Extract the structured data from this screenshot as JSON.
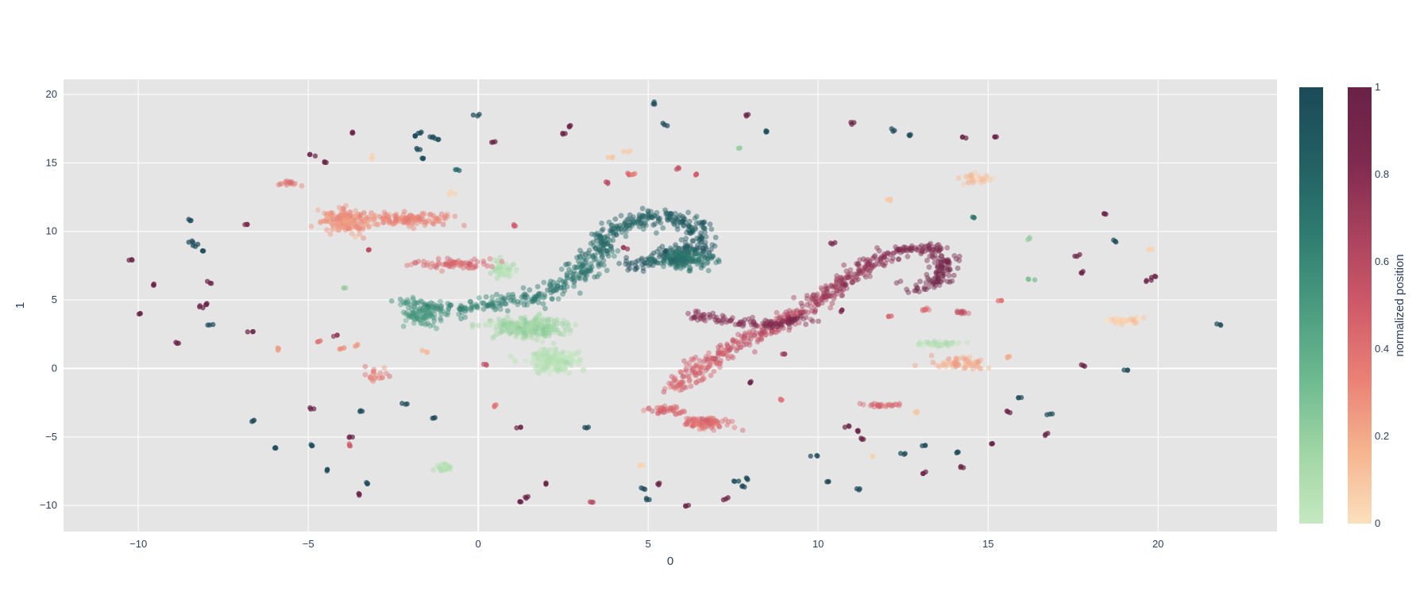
{
  "chart_data": {
    "type": "scatter",
    "title": "",
    "xlabel": "0",
    "ylabel": "1",
    "xlim": [
      -12.2,
      23.5
    ],
    "ylim": [
      -11.9,
      21.1
    ],
    "x_ticks": [
      -10,
      -5,
      0,
      5,
      10,
      15,
      20
    ],
    "y_ticks": [
      -10,
      -5,
      0,
      5,
      10,
      15,
      20
    ],
    "x_tick_labels": [
      "−10",
      "−5",
      "0",
      "5",
      "10",
      "15",
      "20"
    ],
    "y_tick_labels": [
      "−10",
      "−5",
      "0",
      "5",
      "10",
      "15",
      "20"
    ],
    "grid": true,
    "plot_background": "#e5e5e5",
    "colorbars": [
      {
        "name": "green colorscale",
        "title": "",
        "colors": [
          "#c6e8c0",
          "#9fd5a4",
          "#6cb98f",
          "#4a9a80",
          "#2e7b70",
          "#225f63",
          "#1b4a58"
        ],
        "tick_labels": []
      },
      {
        "name": "red colorscale",
        "title": "normalized position",
        "colors": [
          "#fbe0bd",
          "#f5b48e",
          "#ea8074",
          "#cf5a69",
          "#a8415e",
          "#7d2a4e",
          "#6a2146"
        ],
        "range": [
          0,
          1
        ],
        "ticks": [
          0,
          0.2,
          0.4,
          0.6,
          0.8,
          1
        ],
        "tick_labels": [
          "0",
          "0.2",
          "0.4",
          "0.6",
          "0.8",
          "1"
        ]
      }
    ],
    "series": [
      {
        "colorscale": "green",
        "clusters": [
          {
            "x": 1.5,
            "y": 3.0,
            "sx": 0.9,
            "sy": 0.6,
            "n": 260,
            "c": 0.15
          },
          {
            "x": 2.2,
            "y": 0.6,
            "sx": 0.6,
            "sy": 0.7,
            "n": 200,
            "c": 0.05
          },
          {
            "x": 0.7,
            "y": 7.2,
            "sx": 0.3,
            "sy": 0.5,
            "n": 50,
            "c": 0.08
          },
          {
            "x": -1.0,
            "y": -7.2,
            "sx": 0.2,
            "sy": 0.3,
            "n": 40,
            "c": 0.05
          },
          {
            "x": 13.6,
            "y": 1.8,
            "sx": 0.6,
            "sy": 0.2,
            "n": 40,
            "c": 0.06
          }
        ],
        "paths": [
          {
            "pts": [
              [
                -2.2,
                4.8
              ],
              [
                -0.8,
                4.2
              ],
              [
                0.8,
                4.8
              ],
              [
                2.2,
                5.5
              ],
              [
                3.1,
                7.2
              ],
              [
                4.0,
                10.3
              ],
              [
                5.5,
                11.2
              ],
              [
                6.4,
                10.4
              ],
              [
                6.6,
                9.0
              ],
              [
                5.2,
                8.0
              ],
              [
                4.4,
                7.4
              ]
            ],
            "w": 0.55,
            "n": 650,
            "c0": 0.55,
            "c1": 0.98
          },
          {
            "x": -1.6,
            "y": 3.8,
            "sx": 0.5,
            "sy": 0.5,
            "n": 70,
            "c": 0.5
          },
          {
            "x": 6.1,
            "y": 8.0,
            "sx": 0.7,
            "sy": 0.6,
            "n": 160,
            "c": 0.72
          }
        ],
        "singles": [
          [
            -0.05,
            18.5,
            1
          ],
          [
            5.2,
            19.3,
            1
          ],
          [
            5.5,
            17.8,
            1
          ],
          [
            8.5,
            17.3,
            1
          ],
          [
            12.2,
            17.4,
            1
          ],
          [
            12.7,
            17.0,
            1
          ],
          [
            -1.9,
            17.0,
            1
          ],
          [
            -1.7,
            17.2,
            1
          ],
          [
            -1.4,
            16.9,
            1
          ],
          [
            -1.2,
            16.7,
            1
          ],
          [
            -1.8,
            16.0,
            1
          ],
          [
            -1.6,
            15.3,
            1
          ],
          [
            -0.65,
            14.5,
            0.8
          ],
          [
            -8.5,
            10.8,
            1
          ],
          [
            -8.4,
            9.2,
            1
          ],
          [
            -8.3,
            9.0,
            1
          ],
          [
            -8.1,
            8.6,
            1
          ],
          [
            -7.9,
            3.2,
            1
          ],
          [
            -6.6,
            -3.8,
            1
          ],
          [
            -6.0,
            -5.8,
            1
          ],
          [
            -4.9,
            -5.6,
            1
          ],
          [
            -4.4,
            -7.4,
            1
          ],
          [
            -3.4,
            -3.1,
            1
          ],
          [
            -3.3,
            -8.4,
            1
          ],
          [
            -2.1,
            -2.6,
            1
          ],
          [
            -1.3,
            -3.6,
            1
          ],
          [
            3.2,
            -4.3,
            1
          ],
          [
            4.9,
            -8.7,
            1
          ],
          [
            5.0,
            -9.6,
            1
          ],
          [
            7.6,
            -8.2,
            1
          ],
          [
            7.8,
            -8.6,
            1
          ],
          [
            7.9,
            -8.1,
            1
          ],
          [
            9.9,
            -6.4,
            1
          ],
          [
            10.3,
            -8.3,
            1
          ],
          [
            11.2,
            -8.8,
            1
          ],
          [
            12.5,
            -6.2,
            1
          ],
          [
            13.1,
            -5.6,
            1
          ],
          [
            14.1,
            -6.1,
            1
          ],
          [
            15.9,
            -2.2,
            1
          ],
          [
            16.8,
            -3.3,
            1
          ],
          [
            18.7,
            9.3,
            1
          ],
          [
            19.1,
            -0.1,
            1
          ],
          [
            21.8,
            3.2,
            1
          ],
          [
            14.6,
            11.1,
            0.7
          ],
          [
            16.2,
            9.4,
            0.2
          ],
          [
            7.7,
            16.1,
            0.2
          ],
          [
            -3.9,
            5.9,
            0.2
          ],
          [
            16.3,
            6.5,
            0.3
          ]
        ]
      },
      {
        "colorscale": "red",
        "clusters": [
          {
            "x": -3.9,
            "y": 10.8,
            "sx": 0.6,
            "sy": 0.7,
            "n": 170,
            "c": 0.28
          },
          {
            "x": -2.0,
            "y": 10.9,
            "sx": 1.0,
            "sy": 0.4,
            "n": 120,
            "c": 0.32
          },
          {
            "x": -5.6,
            "y": 13.5,
            "sx": 0.25,
            "sy": 0.15,
            "n": 15,
            "c": 0.4
          },
          {
            "x": -0.9,
            "y": 7.6,
            "sx": 1.0,
            "sy": 0.25,
            "n": 70,
            "c": 0.45
          },
          {
            "x": 14.7,
            "y": 13.9,
            "sx": 0.4,
            "sy": 0.3,
            "n": 30,
            "c": 0.12
          },
          {
            "x": 14.2,
            "y": 0.4,
            "sx": 0.6,
            "sy": 0.4,
            "n": 60,
            "c": 0.2
          },
          {
            "x": 19.0,
            "y": 3.5,
            "sx": 0.5,
            "sy": 0.2,
            "n": 40,
            "c": 0.05
          },
          {
            "x": 6.7,
            "y": -4.0,
            "sx": 0.6,
            "sy": 0.35,
            "n": 90,
            "c": 0.42
          },
          {
            "x": 5.5,
            "y": -3.0,
            "sx": 0.4,
            "sy": 0.3,
            "n": 40,
            "c": 0.45
          },
          {
            "x": -3.0,
            "y": -0.5,
            "sx": 0.4,
            "sy": 0.5,
            "n": 20,
            "c": 0.35
          },
          {
            "x": 12.0,
            "y": -2.7,
            "sx": 0.5,
            "sy": 0.1,
            "n": 25,
            "c": 0.45
          },
          {
            "x": 13.1,
            "y": 4.3,
            "sx": 0.1,
            "sy": 0.1,
            "n": 8,
            "c": 0.45
          },
          {
            "x": 14.2,
            "y": 4.1,
            "sx": 0.2,
            "sy": 0.1,
            "n": 12,
            "c": 0.55
          }
        ],
        "paths": [
          {
            "pts": [
              [
                5.8,
                -1.5
              ],
              [
                6.6,
                0.2
              ],
              [
                7.3,
                1.3
              ],
              [
                8.5,
                2.8
              ],
              [
                9.9,
                4.7
              ],
              [
                11.2,
                7.2
              ],
              [
                12.4,
                8.7
              ],
              [
                13.3,
                8.8
              ],
              [
                13.8,
                7.8
              ],
              [
                13.5,
                6.3
              ],
              [
                12.6,
                5.8
              ]
            ],
            "w": 0.45,
            "n": 600,
            "c0": 0.42,
            "c1": 0.98
          },
          {
            "pts": [
              [
                6.3,
                4.0
              ],
              [
                7.4,
                3.4
              ],
              [
                8.6,
                3.2
              ],
              [
                9.6,
                3.6
              ]
            ],
            "w": 0.3,
            "n": 110,
            "c0": 0.8,
            "c1": 0.86
          }
        ],
        "singles": [
          [
            -10.2,
            7.9,
            1
          ],
          [
            -9.6,
            6.1,
            1
          ],
          [
            -9.9,
            4.0,
            1
          ],
          [
            -8.9,
            1.9,
            1
          ],
          [
            -8.0,
            4.7,
            1
          ],
          [
            -8.2,
            4.5,
            1
          ],
          [
            -7.9,
            6.3,
            1
          ],
          [
            -6.7,
            2.7,
            1
          ],
          [
            -6.8,
            10.5,
            0.9
          ],
          [
            -4.9,
            15.6,
            1
          ],
          [
            -4.5,
            15.1,
            1
          ],
          [
            -3.7,
            17.2,
            1
          ],
          [
            0.45,
            16.5,
            1
          ],
          [
            2.5,
            17.1,
            1
          ],
          [
            2.7,
            17.7,
            1
          ],
          [
            7.9,
            18.5,
            1
          ],
          [
            11.0,
            17.9,
            1
          ],
          [
            14.3,
            16.9,
            1
          ],
          [
            15.2,
            16.9,
            1
          ],
          [
            -4.9,
            -2.9,
            1
          ],
          [
            -3.8,
            -5.0,
            1
          ],
          [
            -3.5,
            -9.2,
            1
          ],
          [
            1.2,
            -9.7,
            1
          ],
          [
            1.4,
            -9.4,
            1
          ],
          [
            1.2,
            -4.3,
            1
          ],
          [
            2.0,
            -8.4,
            1
          ],
          [
            5.3,
            -8.4,
            1
          ],
          [
            6.1,
            -10.0,
            1
          ],
          [
            7.3,
            -9.5,
            1
          ],
          [
            8.0,
            -1.0,
            1
          ],
          [
            10.9,
            -4.2,
            1
          ],
          [
            11.2,
            -4.6,
            1
          ],
          [
            11.3,
            -5.1,
            1
          ],
          [
            13.1,
            -7.6,
            1
          ],
          [
            14.2,
            -7.2,
            1
          ],
          [
            15.1,
            -5.5,
            1
          ],
          [
            15.6,
            -3.1,
            1
          ],
          [
            16.7,
            -4.8,
            1
          ],
          [
            17.6,
            8.2,
            1
          ],
          [
            17.8,
            7.0,
            1
          ],
          [
            17.8,
            0.2,
            1
          ],
          [
            18.4,
            11.3,
            1
          ],
          [
            19.7,
            6.4,
            1
          ],
          [
            19.9,
            6.7,
            1
          ],
          [
            4.3,
            8.8,
            0.75
          ],
          [
            5.9,
            14.6,
            0.55
          ],
          [
            6.4,
            14.2,
            0.5
          ],
          [
            3.8,
            13.6,
            0.6
          ],
          [
            4.4,
            14.2,
            0.45
          ],
          [
            0.2,
            0.3,
            0.55
          ],
          [
            -3.8,
            -5.6,
            0.5
          ],
          [
            -4.2,
            2.4,
            0.75
          ],
          [
            -4.7,
            2.0,
            0.4
          ],
          [
            -4.0,
            1.5,
            0.3
          ],
          [
            -3.6,
            1.7,
            0.25
          ],
          [
            -5.9,
            1.4,
            0.25
          ],
          [
            -1.6,
            1.2,
            0.15
          ],
          [
            3.9,
            15.4,
            0.1
          ],
          [
            4.4,
            15.8,
            0.08
          ],
          [
            12.1,
            12.3,
            0.1
          ],
          [
            19.8,
            8.7,
            0.05
          ],
          [
            15.4,
            4.9,
            0.4
          ],
          [
            15.6,
            0.8,
            0.2
          ],
          [
            10.4,
            9.1,
            0.9
          ],
          [
            9.0,
            1.1,
            0.7
          ],
          [
            12.1,
            3.8,
            0.45
          ],
          [
            8.9,
            -2.3,
            0.4
          ],
          [
            4.6,
            14.2,
            0.35
          ],
          [
            1.1,
            10.4,
            0.5
          ],
          [
            -3.2,
            8.6,
            0.6
          ],
          [
            -3.1,
            15.4,
            0.05
          ],
          [
            10.7,
            4.2,
            0.85
          ],
          [
            3.3,
            -9.8,
            0.6
          ],
          [
            -0.8,
            12.8,
            0.05
          ],
          [
            12.9,
            -3.2,
            0.1
          ],
          [
            11.6,
            -6.4,
            0.05
          ],
          [
            4.8,
            -7.1,
            0.05
          ],
          [
            0.5,
            -2.7,
            0.4
          ]
        ]
      }
    ]
  }
}
